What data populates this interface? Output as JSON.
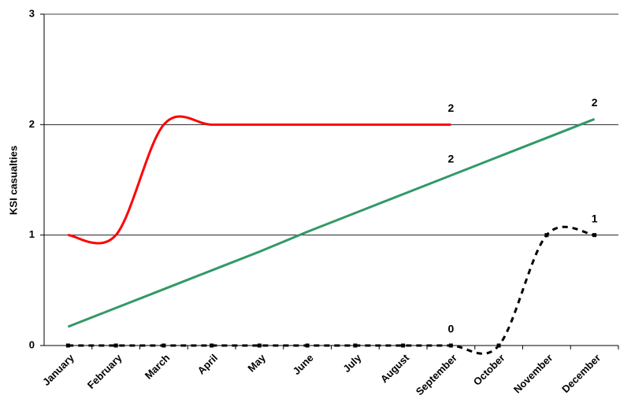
{
  "chart_data": {
    "type": "line",
    "y_label": "KSI casualties",
    "categories": [
      "January",
      "February",
      "March",
      "April",
      "May",
      "June",
      "July",
      "August",
      "September",
      "October",
      "November",
      "December"
    ],
    "ylim": [
      0,
      3
    ],
    "yticks": [
      0,
      1,
      2,
      3
    ],
    "grid": true,
    "series": [
      {
        "color": "#ff0000",
        "smooth": true,
        "dashed": false,
        "markers": false,
        "values": [
          1,
          1,
          2,
          2,
          2,
          2,
          2,
          2,
          2,
          null,
          null,
          null
        ],
        "value_labels": [
          null,
          null,
          null,
          null,
          null,
          null,
          null,
          null,
          "2",
          null,
          null,
          null
        ]
      },
      {
        "color": "#339966",
        "smooth": false,
        "dashed": false,
        "markers": false,
        "values": [
          0.17,
          0.34,
          0.51,
          0.68,
          0.85,
          1.03,
          1.2,
          1.37,
          1.54,
          1.71,
          1.88,
          2.05
        ],
        "value_labels": [
          null,
          null,
          null,
          null,
          null,
          null,
          null,
          null,
          "2",
          null,
          null,
          "2"
        ]
      },
      {
        "color": "#000000",
        "smooth": true,
        "dashed": true,
        "markers": true,
        "values": [
          0,
          0,
          0,
          0,
          0,
          0,
          0,
          0,
          0,
          0,
          1,
          1
        ],
        "value_labels": [
          null,
          null,
          null,
          null,
          null,
          null,
          null,
          null,
          "0",
          null,
          null,
          "1"
        ]
      }
    ]
  }
}
